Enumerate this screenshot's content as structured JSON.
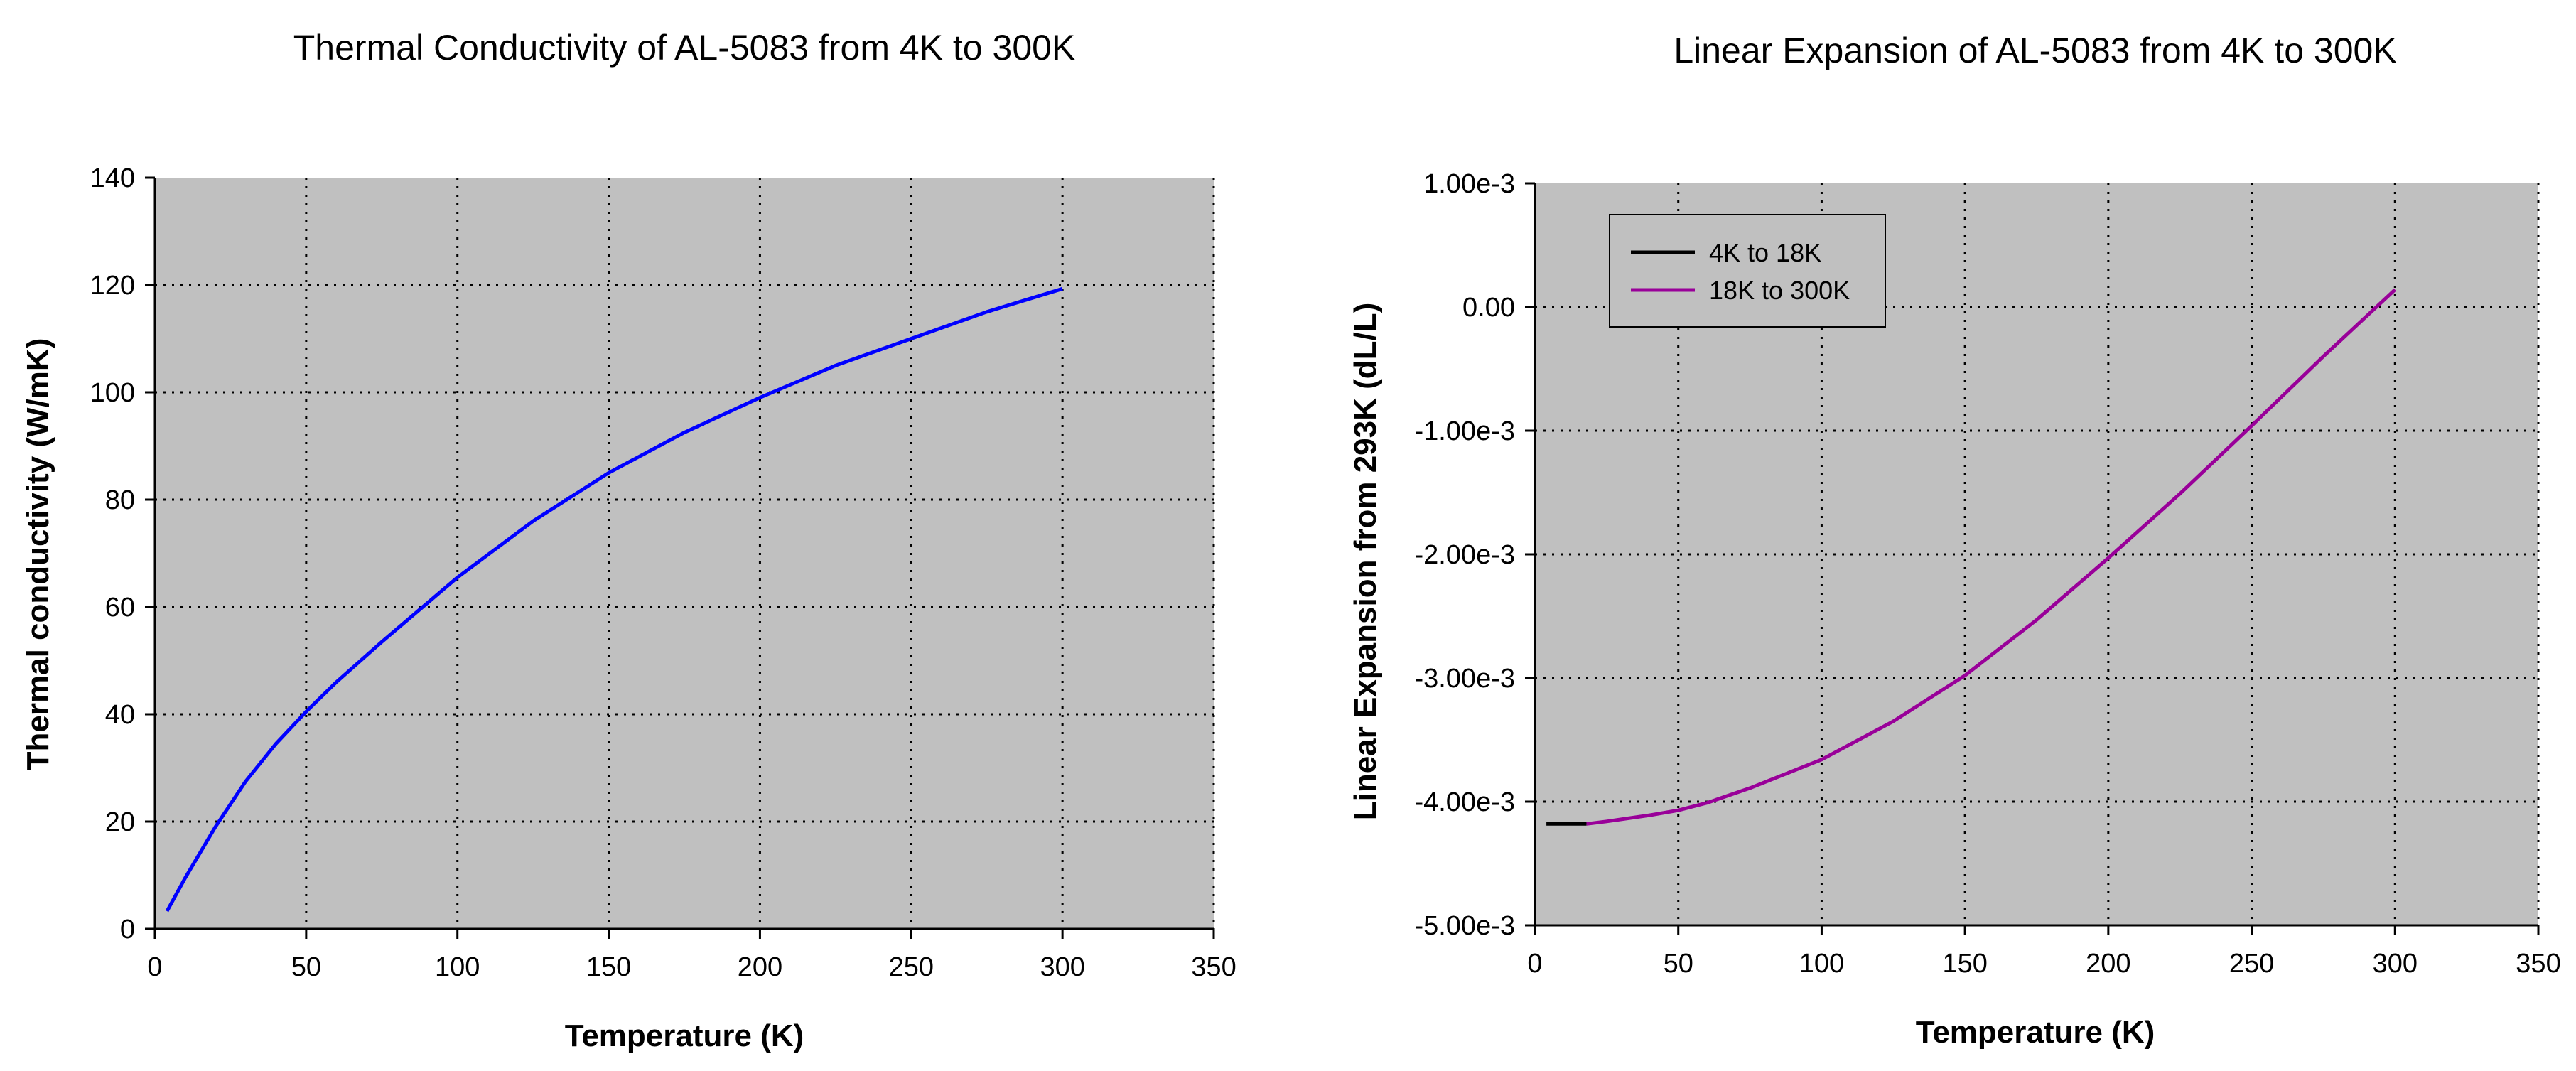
{
  "chart_data": [
    {
      "type": "line",
      "title": "Thermal Conductivity of AL-5083 from 4K to 300K",
      "xlabel": "Temperature (K)",
      "ylabel": "Thermal conductivity (W/mK)",
      "xlim": [
        0,
        350
      ],
      "ylim": [
        0,
        140
      ],
      "xticks": [
        0,
        50,
        100,
        150,
        200,
        250,
        300,
        350
      ],
      "yticks": [
        0,
        20,
        40,
        60,
        80,
        100,
        120,
        140
      ],
      "xtick_labels": [
        "0",
        "50",
        "100",
        "150",
        "200",
        "250",
        "300",
        "350"
      ],
      "ytick_labels": [
        "0",
        "20",
        "40",
        "60",
        "80",
        "100",
        "120",
        "140"
      ],
      "grid": true,
      "plot_background": "#c0c0c0",
      "series": [
        {
          "name": "Thermal conductivity",
          "color": "#0000ff",
          "x": [
            4,
            10,
            20,
            30,
            40,
            50,
            60,
            75,
            100,
            125,
            150,
            175,
            200,
            225,
            250,
            275,
            300
          ],
          "y": [
            3.3,
            9.5,
            19.0,
            27.5,
            34.5,
            40.5,
            46.0,
            53.5,
            65.5,
            76.0,
            85.0,
            92.5,
            99.0,
            105.0,
            110.0,
            115.0,
            119.3
          ]
        }
      ]
    },
    {
      "type": "line",
      "title": "Linear Expansion of AL-5083 from 4K to 300K",
      "xlabel": "Temperature (K)",
      "ylabel": "Linear Expansion from 293K (dL/L)",
      "xlim": [
        0,
        350
      ],
      "ylim": [
        -0.005,
        0.001
      ],
      "xticks": [
        0,
        50,
        100,
        150,
        200,
        250,
        300,
        350
      ],
      "yticks": [
        0.001,
        0,
        -0.001,
        -0.002,
        -0.003,
        -0.004,
        -0.005
      ],
      "xtick_labels": [
        "0",
        "50",
        "100",
        "150",
        "200",
        "250",
        "300",
        "350"
      ],
      "ytick_labels": [
        "1.00e-3",
        "0.00",
        "-1.00e-3",
        "-2.00e-3",
        "-3.00e-3",
        "-4.00e-3",
        "-5.00e-3"
      ],
      "grid": true,
      "legend_position": "top-left",
      "plot_background": "#c0c0c0",
      "series": [
        {
          "name": "4K to 18K",
          "color": "#000000",
          "x": [
            4,
            10,
            18
          ],
          "y": [
            -0.00418,
            -0.00418,
            -0.00418
          ]
        },
        {
          "name": "18K to 300K",
          "color": "#990099",
          "x": [
            18,
            25,
            40,
            50,
            60,
            75,
            100,
            125,
            150,
            175,
            200,
            225,
            250,
            275,
            300
          ],
          "y": [
            -0.00418,
            -0.00416,
            -0.00411,
            -0.00407,
            -0.00401,
            -0.00389,
            -0.00366,
            -0.00335,
            -0.00298,
            -0.00253,
            -0.00203,
            -0.00151,
            -0.00096,
            -0.0004,
            0.00014
          ]
        }
      ]
    }
  ]
}
